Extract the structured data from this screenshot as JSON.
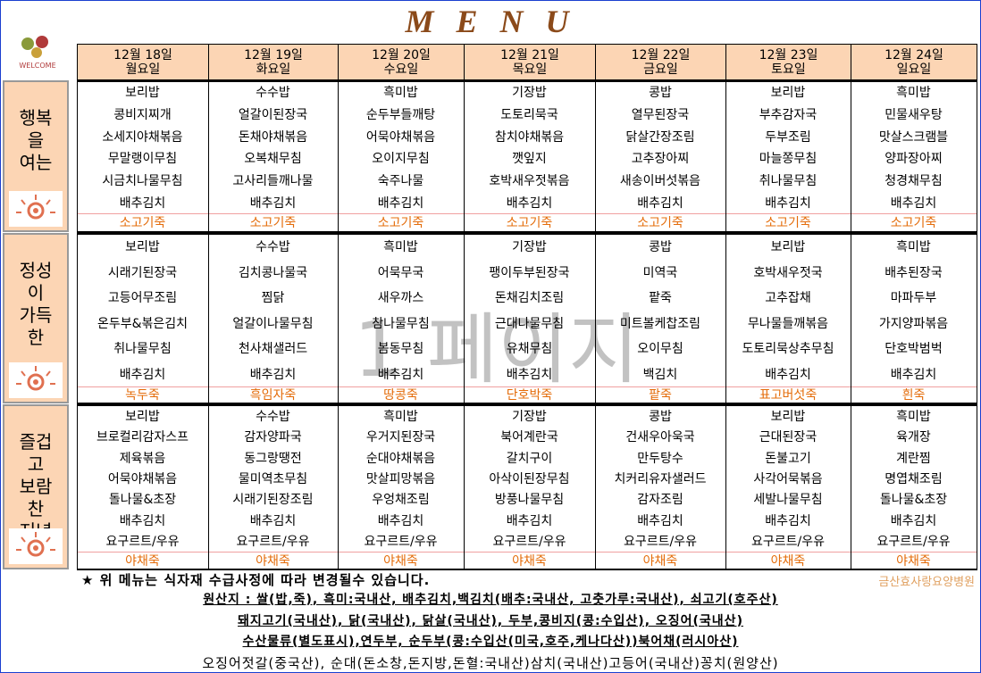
{
  "title": "M E N U",
  "logo": "WELCOME",
  "watermark": "1 페이지",
  "days": [
    {
      "date": "12월 18일",
      "weekday": "월요일"
    },
    {
      "date": "12월 19일",
      "weekday": "화요일"
    },
    {
      "date": "12월 20일",
      "weekday": "수요일"
    },
    {
      "date": "12월 21일",
      "weekday": "목요일"
    },
    {
      "date": "12월 22일",
      "weekday": "금요일"
    },
    {
      "date": "12월 23일",
      "weekday": "토요일"
    },
    {
      "date": "12월 24일",
      "weekday": "일요일"
    }
  ],
  "sections": [
    {
      "label": [
        "행복",
        "을",
        "여는"
      ],
      "rows": [
        [
          "보리밥",
          "수수밥",
          "흑미밥",
          "기장밥",
          "콩밥",
          "보리밥",
          "흑미밥"
        ],
        [
          "콩비지찌개",
          "얼갈이된장국",
          "순두부들깨탕",
          "도토리묵국",
          "열무된장국",
          "부추감자국",
          "민물새우탕"
        ],
        [
          "소세지야채볶음",
          "돈채야채볶음",
          "어묵야채볶음",
          "참치야채볶음",
          "닭살간장조림",
          "두부조림",
          "맛살스크램블"
        ],
        [
          "무말랭이무침",
          "오복채무침",
          "오이지무침",
          "깻잎지",
          "고추장아찌",
          "마늘쫑무침",
          "양파장아찌"
        ],
        [
          "시금치나물무침",
          "고사리들깨나물",
          "숙주나물",
          "호박새우젓볶음",
          "새송이버섯볶음",
          "취나물무침",
          "청경채무침"
        ],
        [
          "배추김치",
          "배추김치",
          "배추김치",
          "배추김치",
          "배추김치",
          "배추김치",
          "배추김치"
        ]
      ],
      "special": [
        "소고기죽",
        "소고기죽",
        "소고기죽",
        "소고기죽",
        "소고기죽",
        "소고기죽",
        "소고기죽"
      ]
    },
    {
      "label": [
        "정성",
        "이",
        "가득",
        "한"
      ],
      "rows": [
        [
          "보리밥",
          "수수밥",
          "흑미밥",
          "기장밥",
          "콩밥",
          "보리밥",
          "흑미밥"
        ],
        [
          "시래기된장국",
          "김치콩나물국",
          "어묵무국",
          "팽이두부된장국",
          "미역국",
          "호박새우젓국",
          "배추된장국"
        ],
        [
          "고등어무조림",
          "찜닭",
          "새우까스",
          "돈채김치조림",
          "팥죽",
          "고추잡채",
          "마파두부"
        ],
        [
          "온두부&볶은김치",
          "얼갈이나물무침",
          "참나물무침",
          "근대나물무침",
          "미트볼케찹조림",
          "무나물들깨볶음",
          "가지양파볶음"
        ],
        [
          "취나물무침",
          "천사채샐러드",
          "봄동무침",
          "유채무침",
          "오이무침",
          "도토리묵상추무침",
          "단호박범벅"
        ],
        [
          "배추김치",
          "배추김치",
          "배추김치",
          "배추김치",
          "백김치",
          "배추김치",
          "배추김치"
        ]
      ],
      "special": [
        "녹두죽",
        "흑임자죽",
        "땅콩죽",
        "단호박죽",
        "팥죽",
        "표고버섯죽",
        "흰죽"
      ]
    },
    {
      "label": [
        "즐겁",
        "고",
        "보람",
        "찬",
        "저녁"
      ],
      "rows": [
        [
          "보리밥",
          "수수밥",
          "흑미밥",
          "기장밥",
          "콩밥",
          "보리밥",
          "흑미밥"
        ],
        [
          "브로컬리감자스프",
          "감자양파국",
          "우거지된장국",
          "북어계란국",
          "건새우아욱국",
          "근대된장국",
          "육개장"
        ],
        [
          "제육볶음",
          "동그랑땡전",
          "순대야채볶음",
          "갈치구이",
          "만두탕수",
          "돈불고기",
          "계란찜"
        ],
        [
          "어묵야채볶음",
          "물미역초무침",
          "맛살피망볶음",
          "아삭이된장무침",
          "치커리유자샐러드",
          "사각어묵볶음",
          "명엽채조림"
        ],
        [
          "돌나물&초장",
          "시래기된장조림",
          "우엉채조림",
          "방풍나물무침",
          "감자조림",
          "세발나물무침",
          "돌나물&초장"
        ],
        [
          "배추김치",
          "배추김치",
          "배추김치",
          "배추김치",
          "배추김치",
          "배추김치",
          "배추김치"
        ],
        [
          "요구르트/우유",
          "요구르트/우유",
          "요구르트/우유",
          "요구르트/우유",
          "요구르트/우유",
          "요구르트/우유",
          "요구르트/우유"
        ]
      ],
      "special": [
        "야채죽",
        "야채죽",
        "야채죽",
        "야채죽",
        "야채죽",
        "야채죽",
        "야채죽"
      ]
    }
  ],
  "footer": {
    "notice": "★ 위 메뉴는 식자재 수급사정에 따라 변경될수 있습니다.",
    "hospital": "금산효사랑요양병원",
    "origin": [
      "원산지 : 쌀(밥,죽), 흑미:국내산, 배추김치,백김치(배추:국내산, 고춧가루:국내산), 쇠고기(호주산)",
      "돼지고기(국내산), 닭(국내산), 닭살(국내산), 두부,콩비지(콩:수입산), 오징어(국내산)",
      "수산물류(별도표시),연두부, 순두부(콩:수입산(미국,호주,케나다산))북어채(러시아산)",
      "오징어젓갈(중국산), 순대(돈소창,돈지방,돈혈:국내산)삼치(국내산)고등어(국내산)꽁치(원양산)"
    ]
  }
}
